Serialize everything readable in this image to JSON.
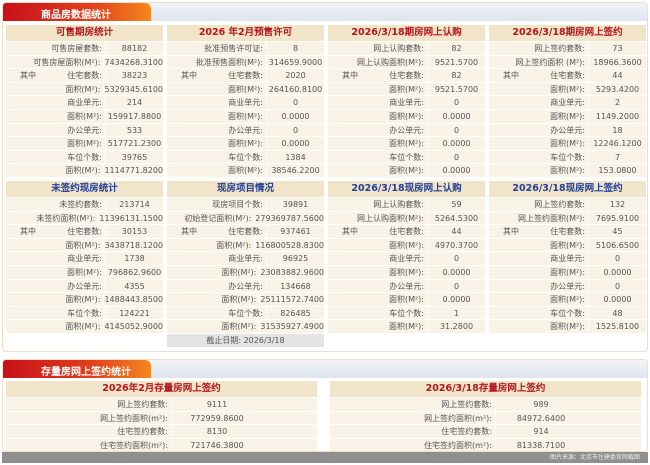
{
  "new_homes": {
    "tab": "商品房数据统计",
    "panels": [
      {
        "title": "可售期房统计",
        "color": "red",
        "rows": [
          [
            "",
            "可售房屋套数:",
            "88182"
          ],
          [
            "",
            "可售房屋面积(M²):",
            "7434268.3100"
          ],
          [
            "其中",
            "住宅套数:",
            "38223"
          ],
          [
            "",
            "面积(M²):",
            "5329345.6100"
          ],
          [
            "",
            "商业单元:",
            "214"
          ],
          [
            "",
            "面积(M²):",
            "159917.8800"
          ],
          [
            "",
            "办公单元:",
            "533"
          ],
          [
            "",
            "面积(M²):",
            "517721.2300"
          ],
          [
            "",
            "车位个数:",
            "39765"
          ],
          [
            "",
            "面积(M²):",
            "1114771.8200"
          ]
        ]
      },
      {
        "title": "2026 年2月预售许可",
        "color": "red",
        "rows": [
          [
            "",
            "批准预售许可证:",
            "8"
          ],
          [
            "",
            "批准预售面积(M²):",
            "314659.9000"
          ],
          [
            "其中",
            "住宅套数:",
            "2020"
          ],
          [
            "",
            "面积(M²):",
            "264160.8100"
          ],
          [
            "",
            "商业单元:",
            "0"
          ],
          [
            "",
            "面积(M²):",
            "0.0000"
          ],
          [
            "",
            "办公单元:",
            "0"
          ],
          [
            "",
            "面积(M²):",
            "0.0000"
          ],
          [
            "",
            "车位个数:",
            "1384"
          ],
          [
            "",
            "面积(M²):",
            "38546.2200"
          ]
        ]
      },
      {
        "title": "2026/3/18期房网上认购",
        "color": "red",
        "rows": [
          [
            "",
            "网上认购套数:",
            "82"
          ],
          [
            "",
            "网上认购面积(M²):",
            "9521.5700"
          ],
          [
            "其中",
            "住宅套数:",
            "82"
          ],
          [
            "",
            "面积(M²):",
            "9521.5700"
          ],
          [
            "",
            "商业单元:",
            "0"
          ],
          [
            "",
            "面积(M²):",
            "0.0000"
          ],
          [
            "",
            "办公单元:",
            "0"
          ],
          [
            "",
            "面积(M²):",
            "0.0000"
          ],
          [
            "",
            "车位个数:",
            "0"
          ],
          [
            "",
            "面积(M²):",
            "0.0000"
          ]
        ]
      },
      {
        "title": "2026/3/18期房网上签约",
        "color": "red",
        "rows": [
          [
            "",
            "网上签约套数:",
            "73"
          ],
          [
            "",
            "网上签约面积 (M²):",
            "18966.3600"
          ],
          [
            "其中",
            "住宅套数:",
            "44"
          ],
          [
            "",
            "面积(M²):",
            "5293.4200"
          ],
          [
            "",
            "商业单元:",
            "2"
          ],
          [
            "",
            "面积(M²):",
            "1149.2000"
          ],
          [
            "",
            "办公单元:",
            "18"
          ],
          [
            "",
            "面积(M²):",
            "12246.1200"
          ],
          [
            "",
            "车位个数:",
            "7"
          ],
          [
            "",
            "面积(M²):",
            "153.0800"
          ]
        ]
      },
      {
        "title": "未签约现房统计",
        "color": "blue",
        "rows": [
          [
            "",
            "未签约套数:",
            "213714"
          ],
          [
            "",
            "未签约面积(M²):",
            "11396131.1500"
          ],
          [
            "其中",
            "住宅套数:",
            "30153"
          ],
          [
            "",
            "面积(M²):",
            "3438718.1200"
          ],
          [
            "",
            "商业单元:",
            "1738"
          ],
          [
            "",
            "面积(M²):",
            "796862.9600"
          ],
          [
            "",
            "办公单元:",
            "4355"
          ],
          [
            "",
            "面积(M²):",
            "1488443.8500"
          ],
          [
            "",
            "车位个数:",
            "124221"
          ],
          [
            "",
            "面积(M²):",
            "4145052.9000"
          ]
        ]
      },
      {
        "title": "现房项目情况",
        "color": "blue",
        "rows": [
          [
            "",
            "现房项目个数:",
            "39891"
          ],
          [
            "",
            "初始登记面积(M²):",
            "279369787.5600"
          ],
          [
            "其中",
            "住宅套数:",
            "937461"
          ],
          [
            "",
            "面积(M²):",
            "116800528.8300"
          ],
          [
            "",
            "商业单元:",
            "96925"
          ],
          [
            "",
            "面积(M²):",
            "23083882.9600"
          ],
          [
            "",
            "办公单元:",
            "134668"
          ],
          [
            "",
            "面积(M²):",
            "25111572.7400"
          ],
          [
            "",
            "车位个数:",
            "826485"
          ],
          [
            "",
            "面积(M²):",
            "31535927.4900"
          ]
        ],
        "footer": "截止日期: 2026/3/18"
      },
      {
        "title": "2026/3/18现房网上认购",
        "color": "blue",
        "rows": [
          [
            "",
            "网上认购套数:",
            "59"
          ],
          [
            "",
            "网上认购面积(M²):",
            "5264.5300"
          ],
          [
            "其中",
            "住宅套数:",
            "44"
          ],
          [
            "",
            "面积(M²):",
            "4970.3700"
          ],
          [
            "",
            "商业单元:",
            "0"
          ],
          [
            "",
            "面积(M²):",
            "0.0000"
          ],
          [
            "",
            "办公单元:",
            "0"
          ],
          [
            "",
            "面积(M²):",
            "0.0000"
          ],
          [
            "",
            "车位个数:",
            "1"
          ],
          [
            "",
            "面积(M²):",
            "31.2800"
          ]
        ]
      },
      {
        "title": "2026/3/18现房网上签约",
        "color": "blue",
        "rows": [
          [
            "",
            "网上签约套数:",
            "132"
          ],
          [
            "",
            "网上签约面积(M²):",
            "7695.9100"
          ],
          [
            "其中",
            "住宅套数:",
            "45"
          ],
          [
            "",
            "面积(M²):",
            "5106.6500"
          ],
          [
            "",
            "商业单元:",
            "0"
          ],
          [
            "",
            "面积(M²):",
            "0.0000"
          ],
          [
            "",
            "办公单元:",
            "0"
          ],
          [
            "",
            "面积(M²):",
            "0.0000"
          ],
          [
            "",
            "车位个数:",
            "48"
          ],
          [
            "",
            "面积(M²):",
            "1525.8100"
          ]
        ]
      }
    ]
  },
  "resale": {
    "tab": "存量房网上签约统计",
    "panels": [
      {
        "title": "2026年2月存量房网上签约",
        "color": "red",
        "rows": [
          [
            "",
            "网上签约套数:",
            "9111"
          ],
          [
            "",
            "网上签约面积(m²):",
            "772959.8600"
          ],
          [
            "",
            "住宅签约套数:",
            "8130"
          ],
          [
            "",
            "住宅签约面积(m²):",
            "721746.3800"
          ]
        ]
      },
      {
        "title": "2026/3/18存量房网上签约",
        "color": "red",
        "rows": [
          [
            "",
            "网上签约套数:",
            "989"
          ],
          [
            "",
            "网上签约面积(m²):",
            "84972.6400"
          ],
          [
            "",
            "住宅签约套数:",
            "914"
          ],
          [
            "",
            "住宅签约面积(m²):",
            "81338.7100"
          ]
        ]
      }
    ]
  },
  "caption": "图片来源：北京市住建委官网截图",
  "colors": {
    "tab_red": "#c8101a",
    "header_bg": "#f1e4c8",
    "title_red": "#b3161c",
    "title_blue": "#1f3e9a",
    "row_bg": "#f8f3e6"
  }
}
